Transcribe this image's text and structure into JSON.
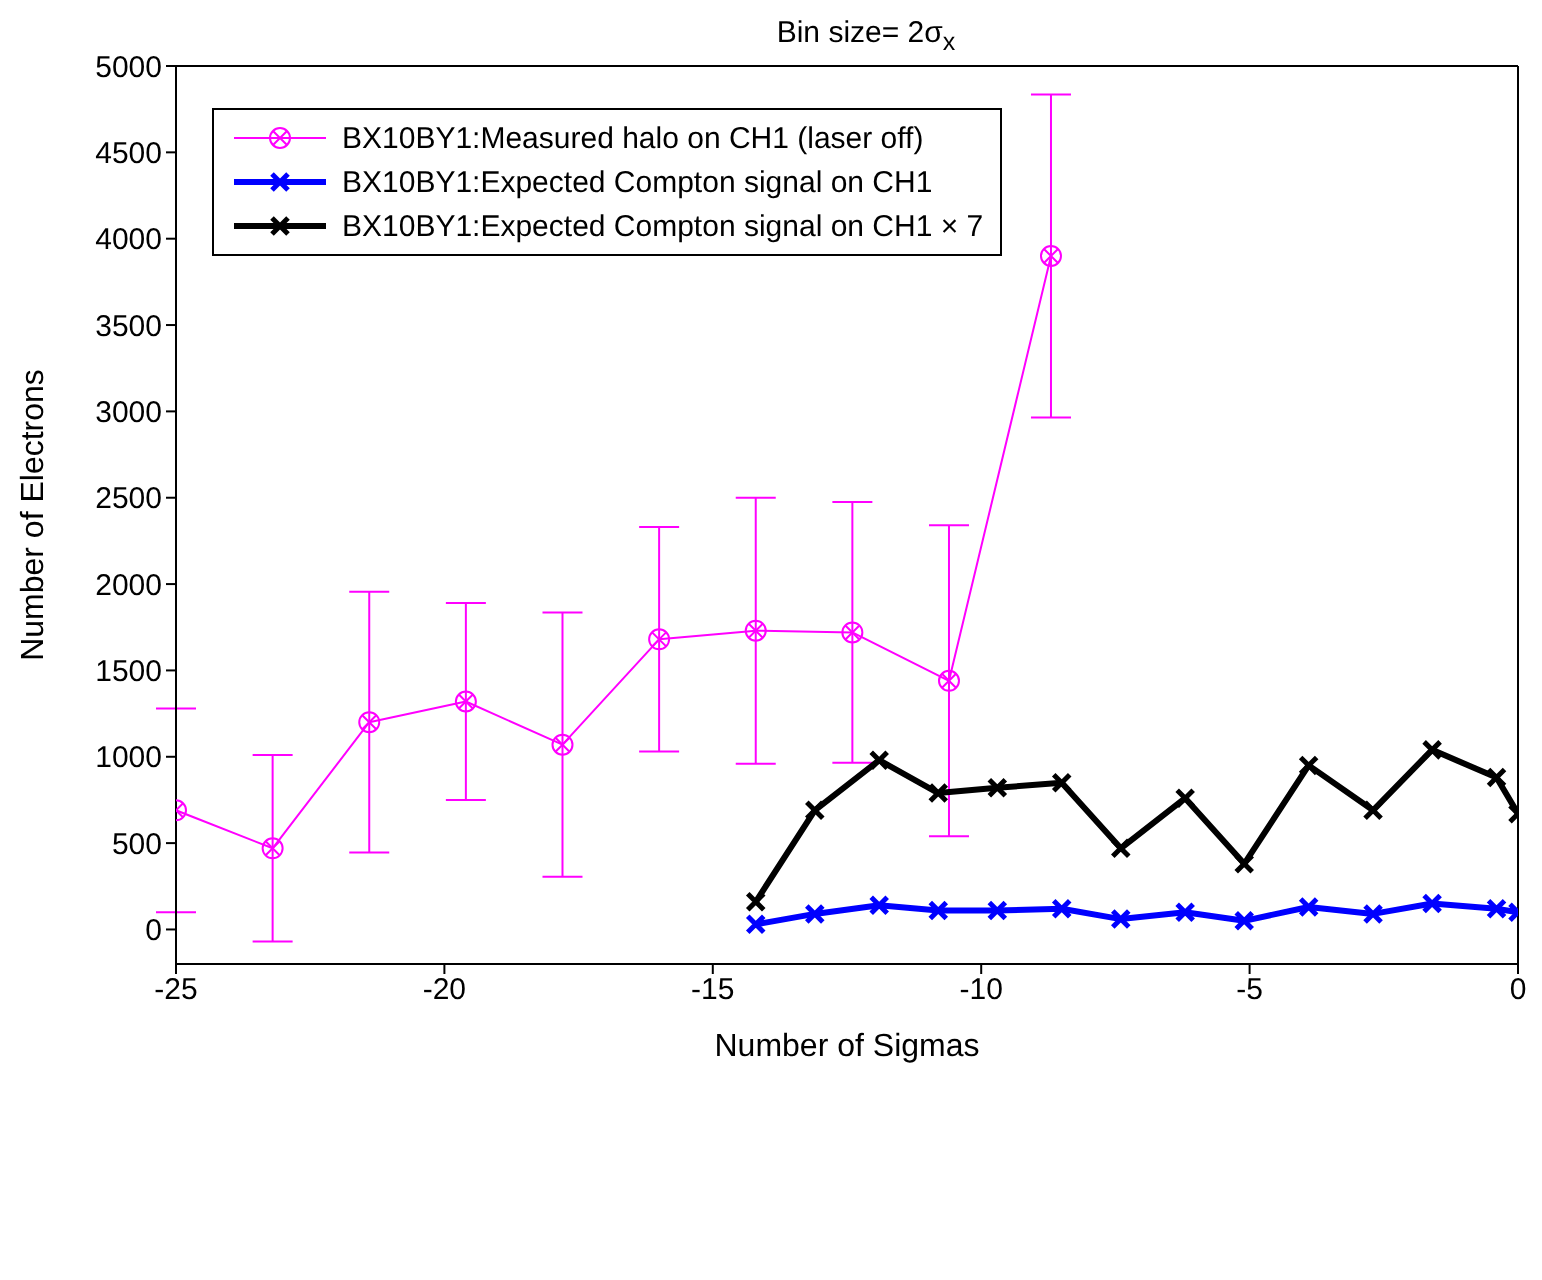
{
  "chart_data": {
    "type": "line",
    "title": "Bin size= 2σ$_{x}$",
    "xlabel": "Number of Sigmas",
    "ylabel": "Number of Electrons",
    "xlim": [
      -25,
      0
    ],
    "xticks": [
      -25,
      -20,
      -15,
      -10,
      -5,
      0
    ],
    "ylim": [
      -200,
      5000
    ],
    "yticks": [
      0,
      500,
      1000,
      1500,
      2000,
      2500,
      3000,
      3500,
      4000,
      4500,
      5000
    ],
    "legend": "top left",
    "series": [
      {
        "name": "BX10BY1:Measured halo on CH1 (laser off)",
        "color": "#ff00ff",
        "marker": "circle",
        "x": [
          -25,
          -23.2,
          -21.4,
          -19.6,
          -17.8,
          -16.0,
          -14.2,
          -12.4,
          -10.6,
          -8.7
        ],
        "values": [
          690,
          470,
          1200,
          1320,
          1070,
          1680,
          1730,
          1720,
          1440,
          3900
        ],
        "errors": [
          590,
          540,
          755,
          570,
          765,
          650,
          770,
          755,
          900,
          935
        ]
      },
      {
        "name": "BX10BY1:Expected Compton signal on CH1",
        "color": "#0000ff",
        "marker": "cross",
        "x": [
          -14.2,
          -13.1,
          -11.9,
          -10.8,
          -9.7,
          -8.5,
          -7.4,
          -6.2,
          -5.1,
          -3.9,
          -2.7,
          -1.6,
          -0.4,
          0
        ],
        "values": [
          30,
          90,
          140,
          110,
          110,
          120,
          60,
          100,
          50,
          130,
          90,
          150,
          120,
          100
        ]
      },
      {
        "name": "BX10BY1:Expected Compton signal on CH1 × 7",
        "color": "#000000",
        "marker": "cross",
        "x": [
          -14.2,
          -13.1,
          -11.9,
          -10.8,
          -9.7,
          -8.5,
          -7.4,
          -6.2,
          -5.1,
          -3.9,
          -2.7,
          -1.6,
          -0.4,
          0
        ],
        "values": [
          160,
          690,
          980,
          790,
          820,
          850,
          470,
          760,
          380,
          950,
          690,
          1040,
          880,
          670
        ]
      }
    ]
  }
}
